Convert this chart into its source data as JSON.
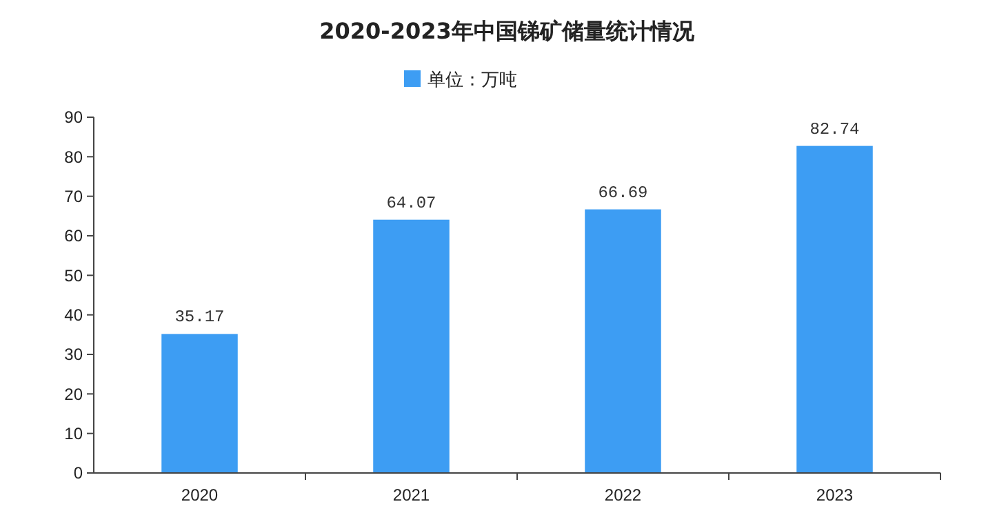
{
  "chart_data": {
    "type": "bar",
    "title": "2020-2023年中国锑矿储量统计情况",
    "categories": [
      "2020",
      "2021",
      "2022",
      "2023"
    ],
    "series": [
      {
        "name": "单位：万吨",
        "color": "#3d9df3",
        "values": [
          35.17,
          64.07,
          66.69,
          82.74
        ]
      }
    ],
    "ylim": [
      0,
      90
    ],
    "yticks": [
      0,
      10,
      20,
      30,
      40,
      50,
      60,
      70,
      80,
      90
    ],
    "data_labels": true,
    "legend": "top",
    "grid": false
  }
}
